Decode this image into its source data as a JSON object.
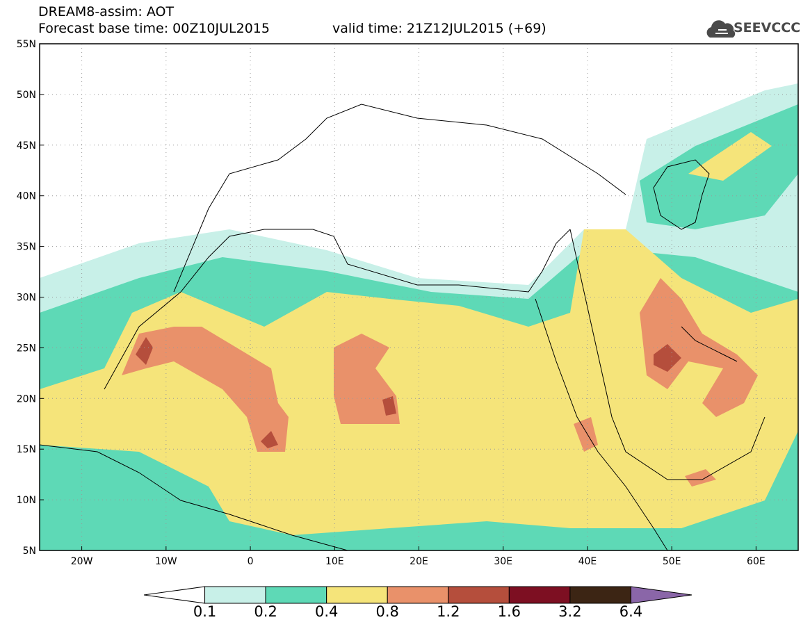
{
  "header": {
    "line1": "DREAM8-assim: AOT",
    "line2": "Forecast base time: 00Z10JUL2015",
    "valid": "valid time: 21Z12JUL2015 (+69)"
  },
  "logo": {
    "text": "SEEVCCC",
    "icon": "cloud-icon",
    "color": "#4a4a4a"
  },
  "map": {
    "lon_range": [
      -25,
      65
    ],
    "lat_range": [
      5,
      55
    ],
    "lon_ticks": [
      {
        "value": -20,
        "label": "20W"
      },
      {
        "value": -10,
        "label": "10W"
      },
      {
        "value": 0,
        "label": "0"
      },
      {
        "value": 10,
        "label": "10E"
      },
      {
        "value": 20,
        "label": "20E"
      },
      {
        "value": 30,
        "label": "30E"
      },
      {
        "value": 40,
        "label": "40E"
      },
      {
        "value": 50,
        "label": "50E"
      },
      {
        "value": 60,
        "label": "60E"
      }
    ],
    "lat_ticks": [
      {
        "value": 5,
        "label": "5N"
      },
      {
        "value": 10,
        "label": "10N"
      },
      {
        "value": 15,
        "label": "15N"
      },
      {
        "value": 20,
        "label": "20N"
      },
      {
        "value": 25,
        "label": "25N"
      },
      {
        "value": 30,
        "label": "30N"
      },
      {
        "value": 35,
        "label": "35N"
      },
      {
        "value": 40,
        "label": "40N"
      },
      {
        "value": 45,
        "label": "45N"
      },
      {
        "value": 50,
        "label": "50N"
      },
      {
        "value": 55,
        "label": "55N"
      }
    ],
    "grid": "dotted"
  },
  "colorbar": {
    "labels": [
      "0.1",
      "0.2",
      "0.4",
      "0.8",
      "1.2",
      "1.6",
      "3.2",
      "6.4"
    ],
    "colors": [
      "#ffffff",
      "#c8f0e8",
      "#5ed9b6",
      "#f5e47a",
      "#e9916a",
      "#b54e3c",
      "#7d0f22",
      "#3c2514",
      "#8a66a8"
    ]
  },
  "fields": {
    "c1": "#c8f0e8",
    "c2": "#5ed9b6",
    "c3": "#f5e47a",
    "c4": "#e9916a",
    "c5": "#b54e3c",
    "c6": "#7d0f22"
  }
}
